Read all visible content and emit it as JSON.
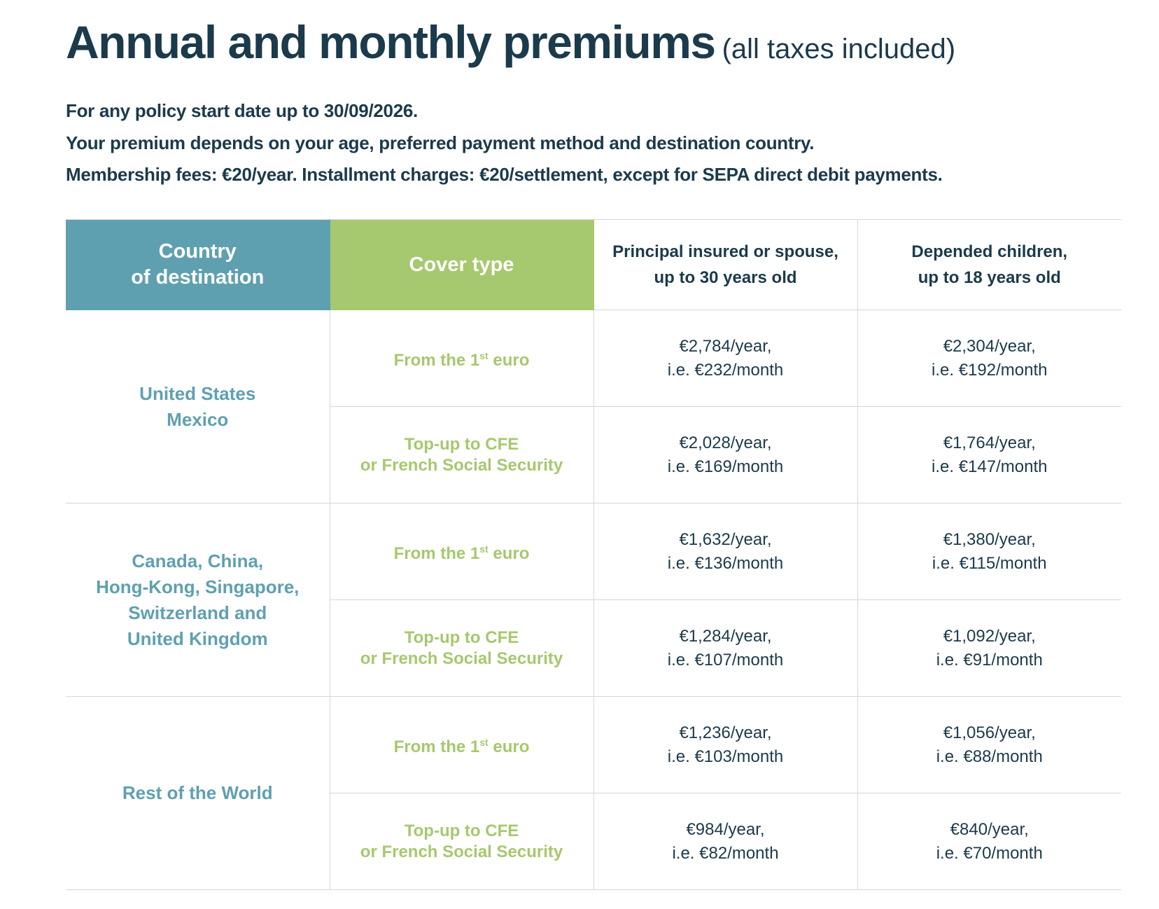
{
  "title": {
    "main": "Annual and monthly premiums",
    "sub": "(all taxes included)"
  },
  "intro": [
    "For any policy start date up to 30/09/2026.",
    "Your premium depends on your age, preferred payment method and destination country.",
    "Membership fees: €20/year. Installment charges: €20/settlement, except for SEPA direct debit payments."
  ],
  "headers": {
    "country": [
      "Country",
      "of destination"
    ],
    "cover": "Cover type",
    "principal": [
      "Principal insured or spouse,",
      "up to 30 years old"
    ],
    "children": [
      "Depended children,",
      "up to 18 years old"
    ]
  },
  "cover_types": {
    "first_euro": {
      "pre": "From the 1",
      "sup": "st",
      "post": " euro"
    },
    "topup": [
      "Top-up to CFE",
      "or French Social Security"
    ]
  },
  "groups": [
    {
      "countries": [
        "United States",
        "Mexico"
      ],
      "rows": [
        {
          "principal": [
            "€2,784/year,",
            "i.e. €232/month"
          ],
          "children": [
            "€2,304/year,",
            "i.e. €192/month"
          ]
        },
        {
          "principal": [
            "€2,028/year,",
            "i.e. €169/month"
          ],
          "children": [
            "€1,764/year,",
            "i.e. €147/month"
          ]
        }
      ]
    },
    {
      "countries": [
        "Canada,  China,",
        "Hong-Kong, Singapore,",
        "Switzerland  and",
        "United Kingdom"
      ],
      "rows": [
        {
          "principal": [
            "€1,632/year,",
            "i.e. €136/month"
          ],
          "children": [
            "€1,380/year,",
            "i.e. €115/month"
          ]
        },
        {
          "principal": [
            "€1,284/year,",
            "i.e. €107/month"
          ],
          "children": [
            "€1,092/year,",
            "i.e. €91/month"
          ]
        }
      ]
    },
    {
      "countries": [
        "Rest of the World"
      ],
      "rows": [
        {
          "principal": [
            "€1,236/year,",
            "i.e. €103/month"
          ],
          "children": [
            "€1,056/year,",
            "i.e. €88/month"
          ]
        },
        {
          "principal": [
            "€984/year,",
            "i.e. €82/month"
          ],
          "children": [
            "€840/year,",
            "i.e. €70/month"
          ]
        }
      ]
    }
  ],
  "colors": {
    "navy": "#1b3a4b",
    "teal": "#5fa0b0",
    "green": "#a6c86e"
  }
}
